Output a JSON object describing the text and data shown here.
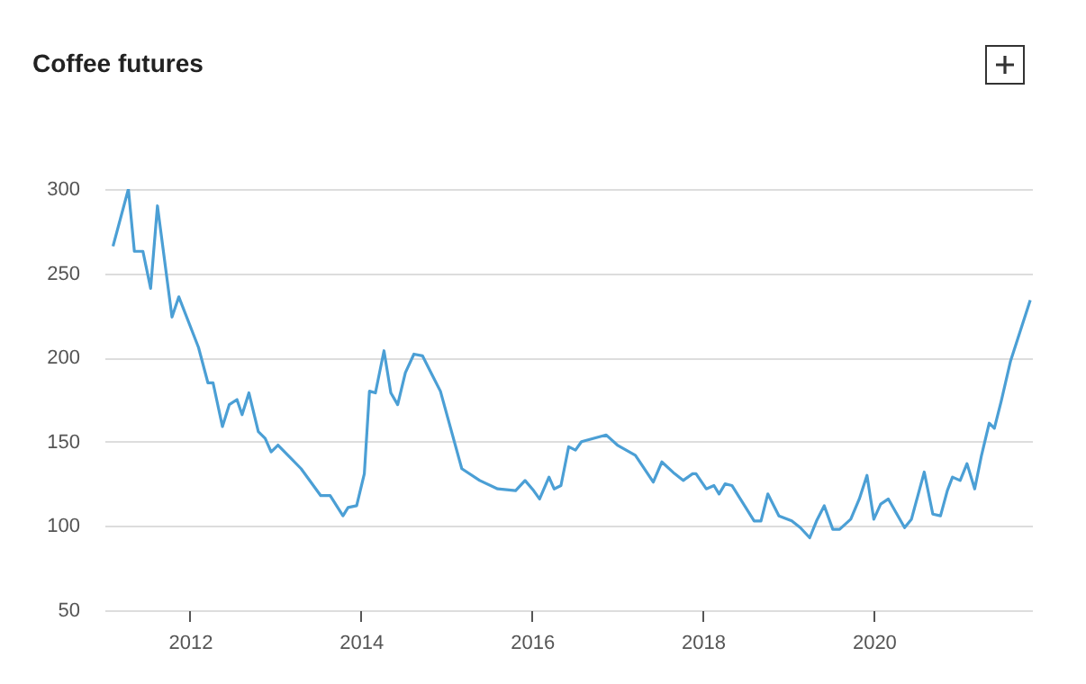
{
  "chart_data": {
    "type": "line",
    "title": "Coffee futures",
    "x": [
      2011.1,
      2011.28,
      2011.35,
      2011.45,
      2011.54,
      2011.62,
      2011.79,
      2011.87,
      2012.1,
      2012.21,
      2012.27,
      2012.38,
      2012.46,
      2012.55,
      2012.61,
      2012.69,
      2012.8,
      2012.88,
      2012.95,
      2013.03,
      2013.3,
      2013.53,
      2013.64,
      2013.79,
      2013.85,
      2013.95,
      2014.04,
      2014.1,
      2014.17,
      2014.27,
      2014.35,
      2014.43,
      2014.52,
      2014.62,
      2014.72,
      2014.83,
      2014.93,
      2015.18,
      2015.39,
      2015.6,
      2015.81,
      2015.92,
      2016.02,
      2016.09,
      2016.2,
      2016.26,
      2016.34,
      2016.43,
      2016.51,
      2016.58,
      2016.87,
      2017.0,
      2017.21,
      2017.42,
      2017.52,
      2017.67,
      2017.77,
      2017.88,
      2017.92,
      2018.04,
      2018.13,
      2018.19,
      2018.26,
      2018.34,
      2018.6,
      2018.68,
      2018.76,
      2018.89,
      2019.04,
      2019.14,
      2019.25,
      2019.33,
      2019.42,
      2019.52,
      2019.6,
      2019.73,
      2019.83,
      2019.92,
      2020.0,
      2020.08,
      2020.17,
      2020.36,
      2020.44,
      2020.59,
      2020.69,
      2020.78,
      2020.86,
      2020.92,
      2021.01,
      2021.09,
      2021.18,
      2021.26,
      2021.35,
      2021.41,
      2021.49,
      2021.6,
      2021.83
    ],
    "series": [
      {
        "color": "#4b9fd5",
        "values": [
          266,
          300,
          263,
          263,
          241,
          290,
          224,
          236,
          206,
          185,
          185,
          159,
          172,
          175,
          166,
          179,
          156,
          152,
          144,
          148,
          134,
          118,
          118,
          106,
          111,
          112,
          131,
          180,
          179,
          204,
          179,
          172,
          191,
          202,
          201,
          190,
          180,
          134,
          127,
          122,
          121,
          127,
          121,
          116,
          129,
          122,
          124,
          147,
          145,
          150,
          154,
          148,
          142,
          126,
          138,
          131,
          127,
          131,
          131,
          122,
          124,
          119,
          125,
          124,
          103,
          103,
          119,
          106,
          103,
          99,
          93,
          103,
          112,
          98,
          98,
          104,
          116,
          130,
          104,
          113,
          116,
          99,
          104,
          132,
          107,
          106,
          121,
          129,
          127,
          137,
          122,
          142,
          161,
          158,
          174,
          198,
          234
        ]
      }
    ],
    "xlim": [
      2011.0,
      2021.85
    ],
    "xticks": [
      2012,
      2014,
      2016,
      2018,
      2020
    ],
    "ylim": [
      50,
      300
    ],
    "yticks": [
      50,
      100,
      150,
      200,
      250,
      300
    ],
    "grid": "y",
    "legend": false,
    "marker": "none",
    "line_style": "solid"
  }
}
